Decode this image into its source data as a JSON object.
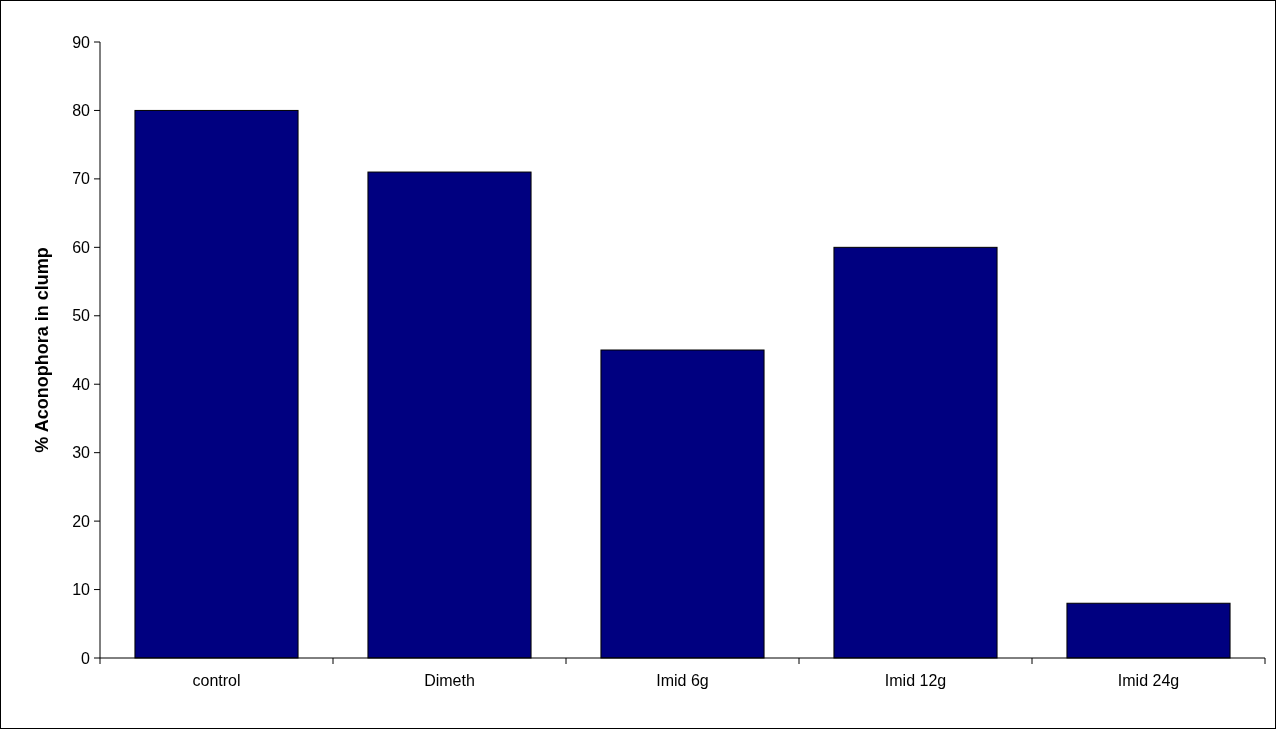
{
  "chart_data": {
    "type": "bar",
    "ylabel": "% Aconophora in clump",
    "categories": [
      "control",
      "Dimeth",
      "Imid 6g",
      "Imid 12g",
      "Imid 24g"
    ],
    "values": [
      80,
      71,
      45,
      60,
      8
    ],
    "color": "#000080",
    "ylim": [
      0,
      90
    ],
    "yticks": [
      0,
      10,
      20,
      30,
      40,
      50,
      60,
      70,
      80,
      90
    ],
    "grid": false
  }
}
